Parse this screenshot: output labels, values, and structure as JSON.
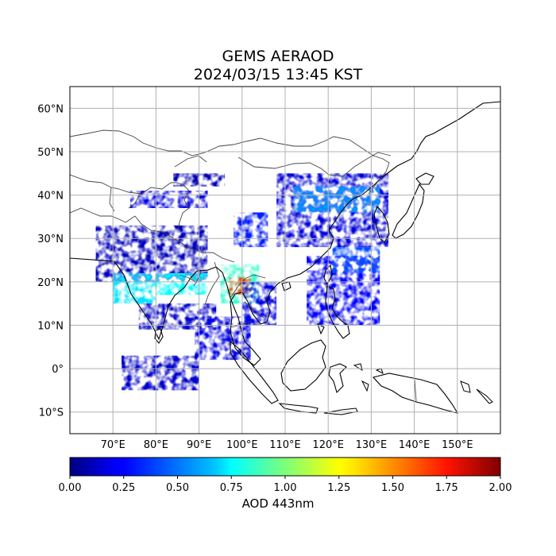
{
  "title": {
    "line1": "GEMS AERAOD",
    "line2": "2024/03/15 13:45 KST"
  },
  "map": {
    "lon_range": [
      60,
      160
    ],
    "lat_range": [
      -15,
      65
    ],
    "lon_ticks": [
      70,
      80,
      90,
      100,
      110,
      120,
      130,
      140,
      150
    ],
    "lon_tick_labels": [
      "70°E",
      "80°E",
      "90°E",
      "100°E",
      "110°E",
      "120°E",
      "130°E",
      "140°E",
      "150°E"
    ],
    "lat_ticks": [
      60,
      50,
      40,
      30,
      20,
      10,
      0,
      -10
    ],
    "lat_tick_labels": [
      "60°N",
      "50°N",
      "40°N",
      "30°N",
      "20°N",
      "10°N",
      "0°",
      "10°S"
    ],
    "grid": true,
    "coastline_color": "#000000",
    "border_color": "#444444"
  },
  "colorbar": {
    "label": "AOD 443nm",
    "range": [
      0.0,
      2.0
    ],
    "ticks": [
      0.0,
      0.25,
      0.5,
      0.75,
      1.0,
      1.25,
      1.5,
      1.75,
      2.0
    ],
    "tick_labels": [
      "0.00",
      "0.25",
      "0.50",
      "0.75",
      "1.00",
      "1.25",
      "1.50",
      "1.75",
      "2.00"
    ],
    "colormap": "jet"
  },
  "chart_data": {
    "type": "heatmap",
    "variable": "AOD 443nm",
    "regions": [
      {
        "lon": [
          66,
          92
        ],
        "lat": [
          20,
          33
        ],
        "aod": 0.12
      },
      {
        "lon": [
          70,
          80
        ],
        "lat": [
          15,
          22
        ],
        "aod": 0.7
      },
      {
        "lon": [
          80,
          92
        ],
        "lat": [
          17,
          22
        ],
        "aod": 0.75
      },
      {
        "lon": [
          95,
          104
        ],
        "lat": [
          15,
          24
        ],
        "aod": 0.85
      },
      {
        "lon": [
          97,
          102
        ],
        "lat": [
          17,
          21
        ],
        "aod": 1.6
      },
      {
        "lon": [
          98,
          106
        ],
        "lat": [
          28,
          36
        ],
        "aod": 0.3
      },
      {
        "lon": [
          100,
          108
        ],
        "lat": [
          10,
          20
        ],
        "aod": 0.2
      },
      {
        "lon": [
          76,
          94
        ],
        "lat": [
          9,
          15
        ],
        "aod": 0.15
      },
      {
        "lon": [
          89,
          102
        ],
        "lat": [
          2,
          12
        ],
        "aod": 0.2
      },
      {
        "lon": [
          108,
          134
        ],
        "lat": [
          28,
          45
        ],
        "aod": 0.18
      },
      {
        "lon": [
          112,
          132
        ],
        "lat": [
          36,
          42
        ],
        "aod": 0.55
      },
      {
        "lon": [
          84,
          96
        ],
        "lat": [
          42,
          45
        ],
        "aod": 0.1
      },
      {
        "lon": [
          74,
          92
        ],
        "lat": [
          37,
          41
        ],
        "aod": 0.2
      },
      {
        "lon": [
          72,
          90
        ],
        "lat": [
          -5,
          3
        ],
        "aod": 0.15
      },
      {
        "lon": [
          115,
          132
        ],
        "lat": [
          10,
          26
        ],
        "aod": 0.25
      },
      {
        "lon": [
          121,
          132
        ],
        "lat": [
          22,
          28
        ],
        "aod": 0.4
      }
    ]
  }
}
